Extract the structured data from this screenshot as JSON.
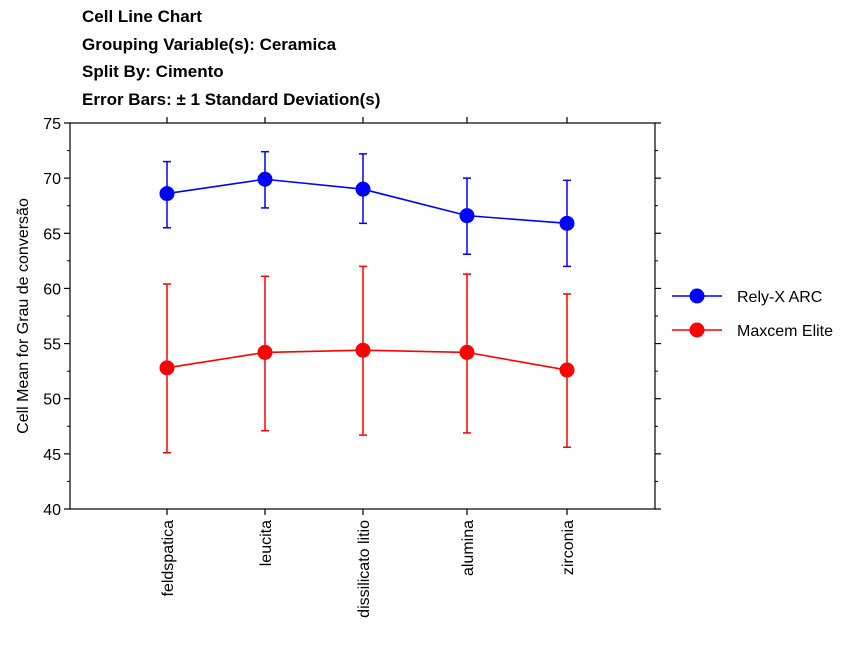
{
  "chart_data": {
    "type": "line",
    "title_lines": [
      "Cell Line Chart",
      "Grouping Variable(s): Ceramica",
      "Split By: Cimento",
      "Error Bars: ± 1 Standard Deviation(s)"
    ],
    "xlabel": "",
    "ylabel": "Cell Mean for Grau de conversão",
    "ylim": [
      40,
      75
    ],
    "yticks": [
      "40",
      "45",
      "50",
      "55",
      "60",
      "65",
      "70",
      "75"
    ],
    "categories": [
      "feldspatica",
      "leucita",
      "dissilicato litio",
      "alumina",
      "zirconia"
    ],
    "legend_position": "right",
    "series": [
      {
        "name": "Rely-X ARC",
        "color": "#0000ff",
        "values": [
          68.6,
          69.9,
          69.0,
          66.6,
          65.9
        ],
        "err_low": [
          65.5,
          67.3,
          65.9,
          63.1,
          62.0
        ],
        "err_high": [
          71.5,
          72.4,
          72.2,
          70.0,
          69.8
        ]
      },
      {
        "name": "Maxcem Elite",
        "color": "#ff0000",
        "values": [
          52.8,
          54.2,
          54.4,
          54.2,
          52.6
        ],
        "err_low": [
          45.1,
          47.1,
          46.7,
          46.9,
          45.6
        ],
        "err_high": [
          60.4,
          61.1,
          62.0,
          61.3,
          59.5
        ]
      }
    ]
  }
}
